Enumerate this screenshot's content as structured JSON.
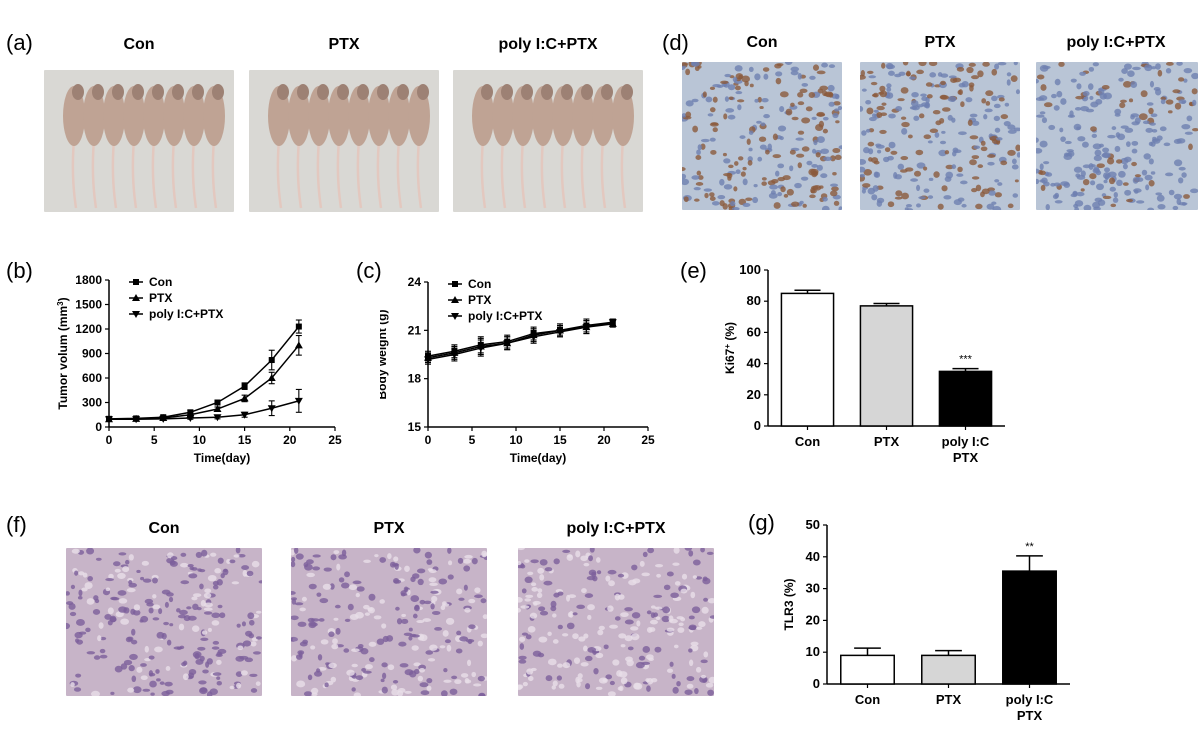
{
  "panels": {
    "a": {
      "label": "(a)",
      "groups": [
        "Con",
        "PTX",
        "poly I:C+PTX"
      ]
    },
    "b": {
      "label": "(b)"
    },
    "c": {
      "label": "(c)"
    },
    "d": {
      "label": "(d)",
      "groups": [
        "Con",
        "PTX",
        "poly I:C+PTX"
      ]
    },
    "e": {
      "label": "(e)"
    },
    "f": {
      "label": "(f)",
      "groups": [
        "Con",
        "PTX",
        "poly I:C+PTX"
      ]
    },
    "g": {
      "label": "(g)"
    }
  },
  "colors": {
    "photo_bg": "#d9d8d4",
    "mouse_body": "#bfa394",
    "ihc_bg": "#b9c5d6",
    "ihc_brown": "#8b5a3c",
    "he_bg": "#c7b4c8",
    "he_nuclei": "#7c5f9b",
    "bar_white": "#ffffff",
    "bar_gray": "#d6d6d6",
    "bar_black": "#000000"
  },
  "chart_data": [
    {
      "id": "b",
      "type": "line",
      "xlabel": "Time(day)",
      "ylabel": "Tumor volum (mm",
      "ylabel_sup": "3",
      "ylabel_end": ")",
      "xlim": [
        0,
        25
      ],
      "ylim": [
        0,
        1800
      ],
      "xticks": [
        "0",
        "5",
        "10",
        "15",
        "20",
        "25"
      ],
      "yticks": [
        "0",
        "300",
        "600",
        "900",
        "1200",
        "1500",
        "1800"
      ],
      "legend": [
        "Con",
        "PTX",
        "poly I:C+PTX"
      ],
      "series": [
        {
          "name": "Con",
          "marker": "square",
          "x": [
            0,
            3,
            6,
            9,
            12,
            15,
            18,
            21
          ],
          "y": [
            100,
            105,
            120,
            180,
            300,
            500,
            820,
            1230
          ],
          "err": [
            20,
            15,
            20,
            25,
            30,
            40,
            120,
            80
          ]
        },
        {
          "name": "PTX",
          "marker": "triangle-up",
          "x": [
            0,
            3,
            6,
            9,
            12,
            15,
            18,
            21
          ],
          "y": [
            95,
            100,
            110,
            150,
            220,
            350,
            600,
            1000
          ],
          "err": [
            15,
            15,
            15,
            20,
            25,
            40,
            70,
            120
          ]
        },
        {
          "name": "poly I:C+PTX",
          "marker": "triangle-down",
          "x": [
            0,
            3,
            6,
            9,
            12,
            15,
            18,
            21
          ],
          "y": [
            95,
            95,
            100,
            110,
            120,
            150,
            230,
            320
          ],
          "err": [
            10,
            10,
            10,
            15,
            20,
            30,
            90,
            140
          ]
        }
      ]
    },
    {
      "id": "c",
      "type": "line",
      "xlabel": "Time(day)",
      "ylabel": "Body weight (g)",
      "xlim": [
        0,
        25
      ],
      "ylim": [
        15,
        24
      ],
      "xticks": [
        "0",
        "5",
        "10",
        "15",
        "20",
        "25"
      ],
      "yticks": [
        "15",
        "18",
        "21",
        "24"
      ],
      "legend": [
        "Con",
        "PTX",
        "poly I:C+PTX"
      ],
      "series": [
        {
          "name": "Con",
          "marker": "square",
          "x": [
            0,
            3,
            6,
            9,
            12,
            15,
            18,
            21
          ],
          "y": [
            19.4,
            19.7,
            20.1,
            20.3,
            20.8,
            21.0,
            21.3,
            21.5
          ],
          "err": [
            0.3,
            0.4,
            0.5,
            0.4,
            0.4,
            0.3,
            0.4,
            0.2
          ]
        },
        {
          "name": "PTX",
          "marker": "triangle-up",
          "x": [
            0,
            3,
            6,
            9,
            12,
            15,
            18,
            21
          ],
          "y": [
            19.3,
            19.6,
            20.0,
            20.2,
            20.7,
            21.0,
            21.2,
            21.4
          ],
          "err": [
            0.3,
            0.4,
            0.5,
            0.4,
            0.4,
            0.4,
            0.4,
            0.2
          ]
        },
        {
          "name": "poly I:C+PTX",
          "marker": "triangle-down",
          "x": [
            0,
            3,
            6,
            9,
            12,
            15,
            18,
            21
          ],
          "y": [
            19.2,
            19.5,
            19.9,
            20.2,
            20.6,
            20.9,
            21.2,
            21.5
          ],
          "err": [
            0.3,
            0.4,
            0.5,
            0.4,
            0.4,
            0.3,
            0.4,
            0.2
          ]
        }
      ]
    },
    {
      "id": "e",
      "type": "bar",
      "ylabel": "Ki67",
      "ylabel_sup": "+",
      "ylabel_end": " (%)",
      "ylim": [
        0,
        100
      ],
      "yticks": [
        "0",
        "20",
        "40",
        "60",
        "80",
        "100"
      ],
      "categories": [
        [
          "Con"
        ],
        [
          "PTX"
        ],
        [
          "poly I:C",
          "PTX"
        ]
      ],
      "values": [
        85,
        77,
        35
      ],
      "err": [
        2,
        1.5,
        1.8
      ],
      "fills": [
        "#ffffff",
        "#d6d6d6",
        "#000000"
      ],
      "annotations": [
        "",
        "",
        "***"
      ]
    },
    {
      "id": "g",
      "type": "bar",
      "ylabel": "TLR3 (%)",
      "ylim": [
        0,
        50
      ],
      "yticks": [
        "0",
        "10",
        "20",
        "30",
        "40",
        "50"
      ],
      "categories": [
        [
          "Con"
        ],
        [
          "PTX"
        ],
        [
          "poly I:C",
          "PTX"
        ]
      ],
      "values": [
        9,
        9,
        35.5
      ],
      "err": [
        2.3,
        1.5,
        4.8
      ],
      "fills": [
        "#ffffff",
        "#d6d6d6",
        "#000000"
      ],
      "annotations": [
        "",
        "",
        "**"
      ]
    }
  ]
}
